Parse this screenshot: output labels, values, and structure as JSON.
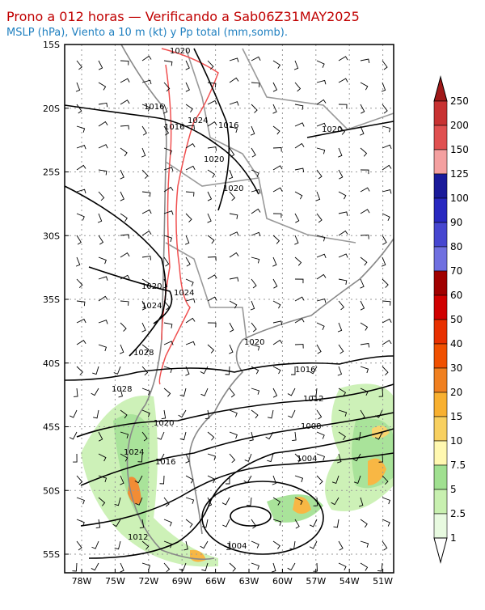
{
  "header": {
    "title": "Prono a 012 horas — Verificando a Sab06Z31MAY2025",
    "subtitle": "MSLP (hPa), Viento a 10 m (kt) y Pp total (mm,somb)."
  },
  "latitudes": [
    "15S",
    "20S",
    "25S",
    "30S",
    "35S",
    "40S",
    "45S",
    "50S",
    "55S"
  ],
  "longitudes": [
    "78W",
    "75W",
    "72W",
    "69W",
    "66W",
    "63W",
    "60W",
    "57W",
    "54W",
    "51W"
  ],
  "isobar_labels": [
    "1020",
    "1016",
    "1016",
    "1024",
    "1016",
    "1020",
    "1020",
    "1020",
    "1020",
    "1024",
    "1024",
    "1028",
    "1020",
    "1016",
    "1028",
    "1012",
    "1020",
    "1008",
    "1024",
    "1016",
    "1004",
    "1012",
    "1004"
  ],
  "colorbar": {
    "labels": [
      250,
      200,
      150,
      125,
      100,
      90,
      80,
      70,
      60,
      50,
      40,
      30,
      20,
      15,
      10,
      7.5,
      5,
      2.5,
      1
    ],
    "colors": [
      "#a01818",
      "#c83232",
      "#e05050",
      "#f4a0a0",
      "#1a1a9a",
      "#2828c0",
      "#4646d0",
      "#7070e0",
      "#a00000",
      "#d00000",
      "#e83000",
      "#f05000",
      "#f08020",
      "#f8b030",
      "#f8d060",
      "#fff8b0",
      "#a0e090",
      "#c8f0b0",
      "#e8fae0",
      "#ffffff"
    ]
  }
}
